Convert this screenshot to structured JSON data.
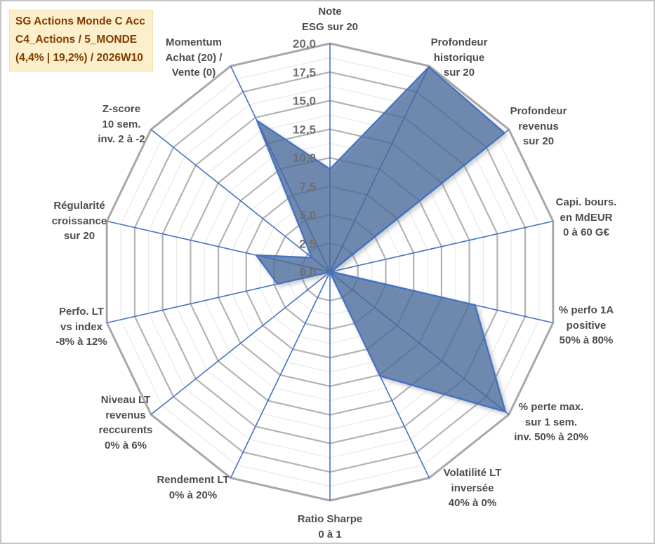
{
  "header": {
    "fund_name": "SG Actions Monde C Acc",
    "category": "C4_Actions / 5_MONDE",
    "stats": "(4,4% | 19,2%) / 2026W10"
  },
  "chart_data": {
    "type": "radar",
    "title": "SG Actions Monde C Acc",
    "rmin": 0,
    "rmax": 20,
    "grid": {
      "max": 20,
      "major_step": 2.5,
      "minor_step": 1.25
    },
    "tick_labels": [
      {
        "value": 20,
        "label": "20,0"
      },
      {
        "value": 17.5,
        "label": "17,5"
      },
      {
        "value": 15,
        "label": "15,0"
      },
      {
        "value": 12.5,
        "label": "12,5"
      },
      {
        "value": 10,
        "label": "10,0"
      },
      {
        "value": 7.5,
        "label": "7,5"
      },
      {
        "value": 5,
        "label": "5,0"
      },
      {
        "value": 2.5,
        "label": "2,5"
      },
      {
        "value": 0,
        "label": "0,0"
      }
    ],
    "axes": [
      {
        "label": [
          "Note",
          "ESG sur 20"
        ],
        "value": 9.0
      },
      {
        "label": [
          "Profondeur",
          "historique",
          "sur 20"
        ],
        "value": 19.9
      },
      {
        "label": [
          "Profondeur",
          "revenus",
          "sur 20"
        ],
        "value": 19.5
      },
      {
        "label": [
          "Capi. bours.",
          "en MdEUR",
          "0 à 60 G€"
        ],
        "value": 0.1
      },
      {
        "label": [
          "% perfo 1A",
          "positive",
          "50% à 80%"
        ],
        "value": 13.0
      },
      {
        "label": [
          "% perte max.",
          "sur 1 sem.",
          "inv. 50% à 20%"
        ],
        "value": 19.6
      },
      {
        "label": [
          "Volatilité LT",
          "inversée",
          "40% à 0%"
        ],
        "value": 10.1
      },
      {
        "label": [
          "Ratio Sharpe",
          "0 à 1"
        ],
        "value": 0.0
      },
      {
        "label": [
          "Rendement LT",
          "0% à 20%"
        ],
        "value": 0.0
      },
      {
        "label": [
          "Niveau LT",
          "revenus",
          "reccurents",
          "0% à 6%"
        ],
        "value": 0.0
      },
      {
        "label": [
          "Perfo. LT",
          "vs index",
          "-8% à 12%"
        ],
        "value": 4.7
      },
      {
        "label": [
          "Régularité",
          "croissance",
          "sur 20"
        ],
        "value": 6.6
      },
      {
        "label": [
          "Z-score",
          "10 sem.",
          "inv. 2 à -2"
        ],
        "value": 2.0
      },
      {
        "label": [
          "Momentum",
          "Achat (20) /",
          "Vente (0)"
        ],
        "value": 14.7
      }
    ],
    "colors": {
      "series_fill": "rgba(70,105,160,0.70)",
      "series_line": "#4472c4",
      "axis_line": "#4472c4",
      "grid_major": "#b3b3b3",
      "grid_outer": "#a8a8a8",
      "grid_minor": "#e9e9e9",
      "tick_text": "#6e6e6e",
      "label_text": "#4d4d4d",
      "title_bg": "#fbf0cb",
      "title_text": "#833c00"
    }
  }
}
